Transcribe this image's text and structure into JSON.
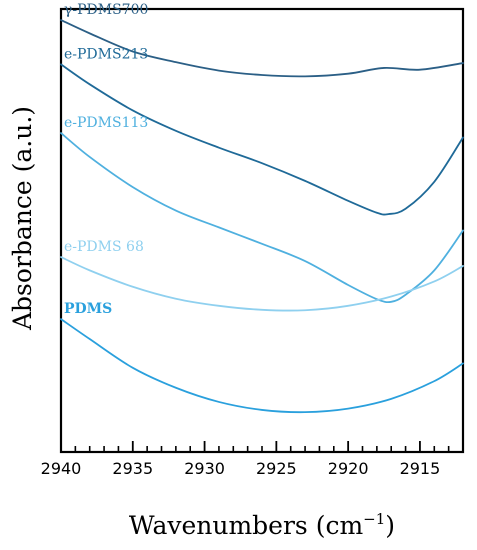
{
  "chart_data": {
    "type": "line",
    "xlabel": "Wavenumbers (cm",
    "xlabel_superscript": "−1",
    "xlabel_close": ")",
    "ylabel": "Absorbance (a.u.)",
    "xlim": [
      2940,
      2912
    ],
    "x_reversed": true,
    "ylim": [
      0,
      10
    ],
    "y_ticks_shown": false,
    "x_major_ticks": [
      2940,
      2935,
      2930,
      2925,
      2920,
      2915
    ],
    "x_minor_step": 1,
    "grid": false,
    "legend": "inline labels",
    "series": [
      {
        "name": "γ-PDMS700",
        "color": "#2b5f86",
        "bold": false,
        "points": [
          [
            2940,
            9.75
          ],
          [
            2938,
            9.45
          ],
          [
            2935,
            9.04
          ],
          [
            2932,
            8.8
          ],
          [
            2929,
            8.61
          ],
          [
            2926,
            8.51
          ],
          [
            2923,
            8.48
          ],
          [
            2920,
            8.54
          ],
          [
            2917.5,
            8.67
          ],
          [
            2915,
            8.63
          ],
          [
            2912,
            8.78
          ]
        ]
      },
      {
        "name": "e-PDMS213",
        "color": "#1f6a98",
        "bold": false,
        "points": [
          [
            2940,
            8.75
          ],
          [
            2938,
            8.3
          ],
          [
            2935,
            7.71
          ],
          [
            2932,
            7.25
          ],
          [
            2929,
            6.87
          ],
          [
            2926,
            6.52
          ],
          [
            2923,
            6.12
          ],
          [
            2920,
            5.67
          ],
          [
            2918,
            5.4
          ],
          [
            2917.2,
            5.37
          ],
          [
            2916,
            5.49
          ],
          [
            2914,
            6.1
          ],
          [
            2912,
            7.1
          ]
        ]
      },
      {
        "name": "e-PDMS113",
        "color": "#4fb0df",
        "bold": false,
        "points": [
          [
            2940,
            7.2
          ],
          [
            2938,
            6.66
          ],
          [
            2935,
            5.98
          ],
          [
            2932,
            5.45
          ],
          [
            2929,
            5.07
          ],
          [
            2926,
            4.7
          ],
          [
            2923,
            4.31
          ],
          [
            2920,
            3.77
          ],
          [
            2918,
            3.45
          ],
          [
            2917,
            3.39
          ],
          [
            2916,
            3.55
          ],
          [
            2914,
            4.1
          ],
          [
            2912,
            5.0
          ]
        ]
      },
      {
        "name": "e-PDMS 68",
        "color": "#8fd0ef",
        "bold": false,
        "points": [
          [
            2940,
            4.4
          ],
          [
            2938,
            4.1
          ],
          [
            2935,
            3.73
          ],
          [
            2932,
            3.46
          ],
          [
            2929,
            3.3
          ],
          [
            2926,
            3.21
          ],
          [
            2923,
            3.2
          ],
          [
            2920,
            3.3
          ],
          [
            2917,
            3.51
          ],
          [
            2914,
            3.85
          ],
          [
            2912,
            4.2
          ]
        ]
      },
      {
        "name": "PDMS",
        "color": "#2aa0dd",
        "bold": true,
        "points": [
          [
            2940,
            3.0
          ],
          [
            2938,
            2.55
          ],
          [
            2935,
            1.9
          ],
          [
            2932,
            1.45
          ],
          [
            2929,
            1.13
          ],
          [
            2926,
            0.95
          ],
          [
            2923,
            0.9
          ],
          [
            2920,
            0.98
          ],
          [
            2917,
            1.2
          ],
          [
            2914,
            1.6
          ],
          [
            2912,
            2.0
          ]
        ]
      }
    ]
  }
}
